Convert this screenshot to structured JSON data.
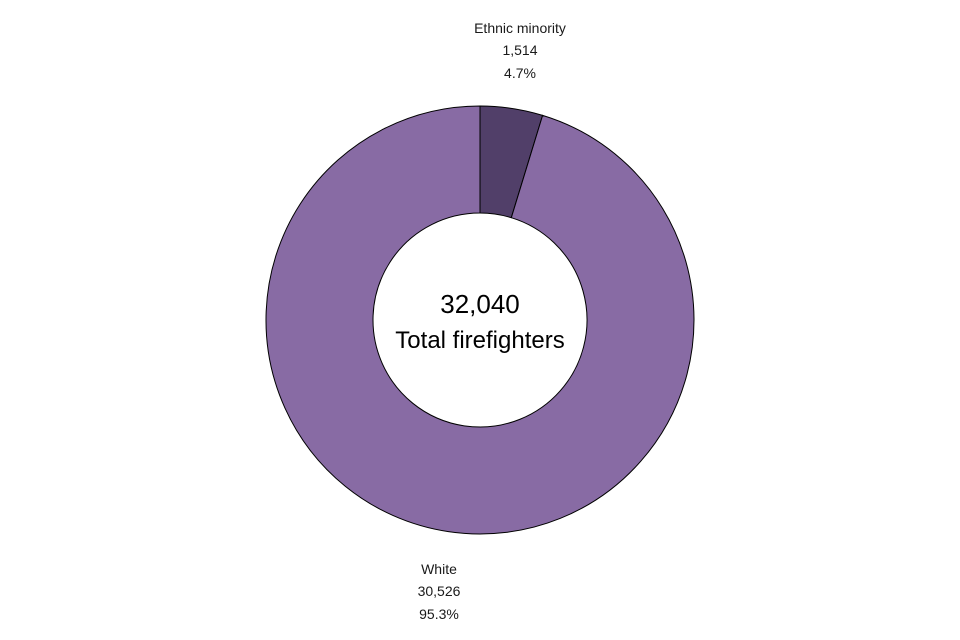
{
  "chart_data": {
    "type": "pie",
    "style": "donut",
    "center": {
      "total": "32,040",
      "caption": "Total firefighters"
    },
    "slices": [
      {
        "label": "Ethnic minority",
        "value": 1514,
        "value_text": "1,514",
        "percent_text": "4.7%",
        "color": "#513f69"
      },
      {
        "label": "White",
        "value": 30526,
        "value_text": "30,526",
        "percent_text": "95.3%",
        "color": "#886ba4"
      }
    ]
  }
}
